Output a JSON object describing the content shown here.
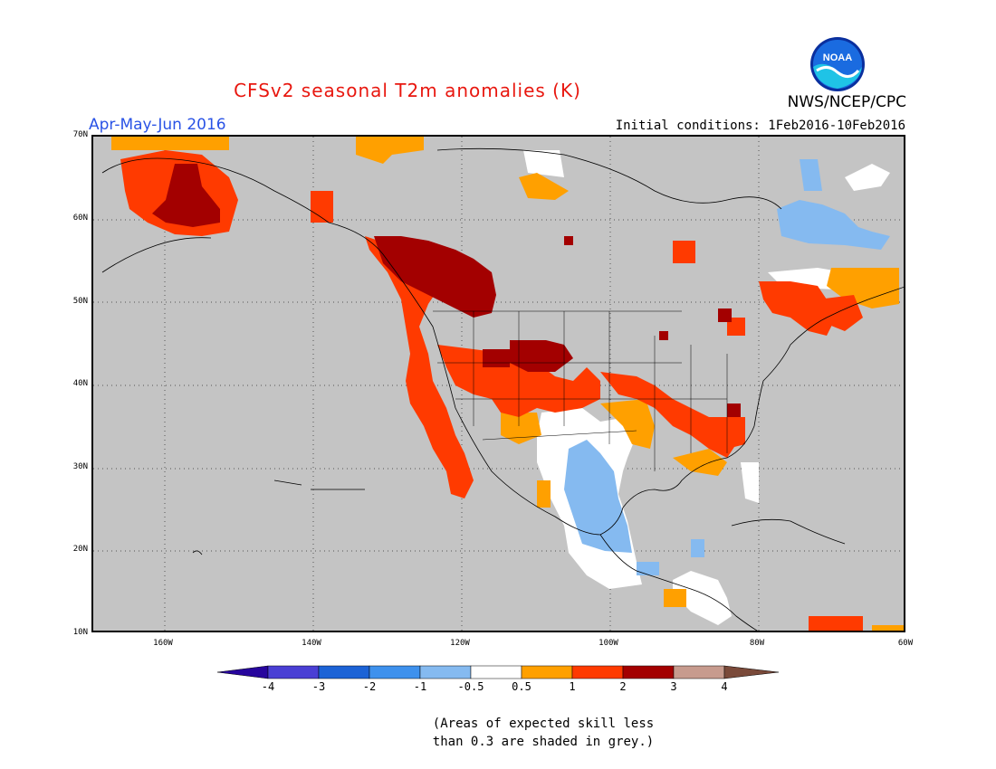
{
  "title": "CFSv2 seasonal T2m anomalies (K)",
  "period": "Apr-May-Jun 2016",
  "initial_conditions": "Initial conditions: 1Feb2016-10Feb2016",
  "agency": "NWS/NCEP/CPC",
  "logo_text": "NOAA",
  "colors": {
    "title": "#e8170f",
    "period": "#2a53e6",
    "grey_mask": "#c4c4c4",
    "land_outline": "#000000",
    "grid": "#555555"
  },
  "lat_labels": [
    "70N",
    "60N",
    "50N",
    "40N",
    "30N",
    "20N",
    "10N"
  ],
  "lon_labels": [
    "160W",
    "140W",
    "120W",
    "100W",
    "80W",
    "60W"
  ],
  "colorbar": {
    "labels": [
      "-4",
      "-3",
      "-2",
      "-1",
      "-0.5",
      "0.5",
      "1",
      "2",
      "3",
      "4"
    ],
    "colors": [
      "#27059d",
      "#4a3fd4",
      "#1c63d6",
      "#3e91ed",
      "#85baf0",
      "#ffffff",
      "#ffa000",
      "#ff3a00",
      "#a30000",
      "#c79b8e",
      "#7a4a3a"
    ]
  },
  "note_line1": "(Areas of expected skill less",
  "note_line2": "than 0.3 are shaded in grey.)"
}
